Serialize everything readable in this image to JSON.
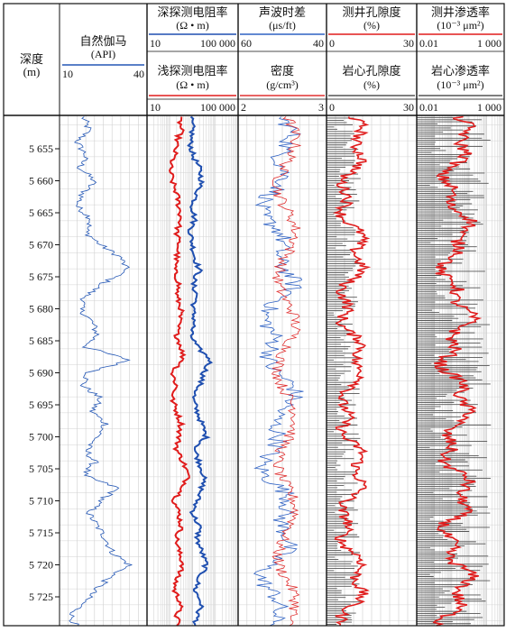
{
  "chart_data": {
    "type": "well-log",
    "depth_axis": {
      "label": "深度",
      "unit": "(m)",
      "ticks": [
        5655,
        5660,
        5665,
        5670,
        5675,
        5680,
        5685,
        5690,
        5695,
        5700,
        5705,
        5710,
        5715,
        5720,
        5725
      ],
      "tick_labels": [
        "5 655",
        "5 660",
        "5 665",
        "5 670",
        "5 675",
        "5 680",
        "5 685",
        "5 690",
        "5 695",
        "5 700",
        "5 705",
        "5 710",
        "5 715",
        "5 720",
        "5 725"
      ],
      "range": [
        5650,
        5730
      ]
    },
    "tracks": [
      {
        "title": "自然伽马",
        "unit": "(API)",
        "min_label": "10",
        "max_label": "40",
        "color": "#2457b5"
      },
      {
        "title1": "深探测电阻率",
        "unit1": "(Ω • m)",
        "min1": "10",
        "max1": "100 000",
        "color1": "#1f4fb0",
        "title2": "浅探测电阻率",
        "unit2": "(Ω • m)",
        "min2": "10",
        "max2": "100 000",
        "color2": "#e01c1c"
      },
      {
        "title1": "声波时差",
        "unit1": "(μs/ft)",
        "min1": "60",
        "max1": "40",
        "color1": "#2f62c4",
        "title2": "密度",
        "unit2": "(g/cm³)",
        "min2": "2",
        "max2": "3",
        "color2": "#e03030"
      },
      {
        "title1": "测井孔隙度",
        "unit1": "(%)",
        "min1": "0",
        "max1": "30",
        "color1": "#e01c1c",
        "title2": "岩心孔隙度",
        "unit2": "(%)",
        "min2": "0",
        "max2": "30",
        "color2": "#555555"
      },
      {
        "title1": "测井渗透率",
        "unit1": "(10⁻³ μm²)",
        "min1": "0.01",
        "max1": "1 000",
        "color1": "#e01c1c",
        "title2": "岩心渗透率",
        "unit2": "(10⁻³ μm²)",
        "min2": "0.01",
        "max2": "1 000",
        "color2": "#555555"
      }
    ],
    "series_samples": {
      "gamma": [
        [
          5650,
          18
        ],
        [
          5652,
          20
        ],
        [
          5654,
          16
        ],
        [
          5656,
          19
        ],
        [
          5658,
          17
        ],
        [
          5660,
          22
        ],
        [
          5662,
          18
        ],
        [
          5664,
          16
        ],
        [
          5666,
          21
        ],
        [
          5668,
          19
        ],
        [
          5670,
          24
        ],
        [
          5672,
          31
        ],
        [
          5674,
          33
        ],
        [
          5676,
          25
        ],
        [
          5678,
          19
        ],
        [
          5680,
          17
        ],
        [
          5682,
          21
        ],
        [
          5684,
          23
        ],
        [
          5686,
          19
        ],
        [
          5688,
          34
        ],
        [
          5690,
          20
        ],
        [
          5692,
          18
        ],
        [
          5694,
          24
        ],
        [
          5696,
          21
        ],
        [
          5698,
          26
        ],
        [
          5700,
          23
        ],
        [
          5702,
          19
        ],
        [
          5704,
          22
        ],
        [
          5706,
          18
        ],
        [
          5708,
          30
        ],
        [
          5710,
          24
        ],
        [
          5712,
          20
        ],
        [
          5714,
          23
        ],
        [
          5716,
          26
        ],
        [
          5718,
          28
        ],
        [
          5720,
          34
        ],
        [
          5722,
          27
        ],
        [
          5724,
          22
        ],
        [
          5726,
          18
        ],
        [
          5728,
          14
        ],
        [
          5730,
          16
        ]
      ],
      "deep_resistivity_log10": [
        [
          5650,
          2.9
        ],
        [
          5652,
          3.0
        ],
        [
          5654,
          2.9
        ],
        [
          5656,
          3.0
        ],
        [
          5658,
          3.3
        ],
        [
          5660,
          3.4
        ],
        [
          5662,
          3.2
        ],
        [
          5664,
          3.0
        ],
        [
          5666,
          3.1
        ],
        [
          5668,
          2.9
        ],
        [
          5670,
          3.0
        ],
        [
          5672,
          3.1
        ],
        [
          5674,
          3.3
        ],
        [
          5676,
          3.0
        ],
        [
          5678,
          3.2
        ],
        [
          5680,
          3.0
        ],
        [
          5682,
          3.1
        ],
        [
          5684,
          2.9
        ],
        [
          5686,
          3.2
        ],
        [
          5688,
          3.8
        ],
        [
          5690,
          3.5
        ],
        [
          5692,
          3.3
        ],
        [
          5694,
          3.0
        ],
        [
          5696,
          3.2
        ],
        [
          5698,
          3.4
        ],
        [
          5700,
          3.6
        ],
        [
          5702,
          3.1
        ],
        [
          5704,
          3.3
        ],
        [
          5706,
          3.5
        ],
        [
          5708,
          3.4
        ],
        [
          5710,
          3.2
        ],
        [
          5712,
          3.0
        ],
        [
          5714,
          3.3
        ],
        [
          5716,
          3.2
        ],
        [
          5718,
          3.4
        ],
        [
          5720,
          3.6
        ],
        [
          5722,
          3.3
        ],
        [
          5724,
          3.1
        ],
        [
          5726,
          3.4
        ],
        [
          5728,
          3.2
        ],
        [
          5730,
          3.1
        ]
      ],
      "shallow_resistivity_log10": [
        [
          5650,
          2.4
        ],
        [
          5652,
          2.5
        ],
        [
          5654,
          2.3
        ],
        [
          5656,
          2.2
        ],
        [
          5658,
          2.0
        ],
        [
          5660,
          2.1
        ],
        [
          5662,
          2.3
        ],
        [
          5664,
          2.4
        ],
        [
          5666,
          2.5
        ],
        [
          5668,
          2.3
        ],
        [
          5670,
          2.4
        ],
        [
          5672,
          2.3
        ],
        [
          5674,
          2.2
        ],
        [
          5676,
          2.4
        ],
        [
          5678,
          2.3
        ],
        [
          5680,
          2.5
        ],
        [
          5682,
          2.4
        ],
        [
          5684,
          2.3
        ],
        [
          5686,
          2.5
        ],
        [
          5688,
          2.6
        ],
        [
          5690,
          2.1
        ],
        [
          5692,
          2.3
        ],
        [
          5694,
          2.1
        ],
        [
          5696,
          2.3
        ],
        [
          5698,
          2.5
        ],
        [
          5700,
          2.4
        ],
        [
          5702,
          2.3
        ],
        [
          5704,
          2.6
        ],
        [
          5706,
          2.8
        ],
        [
          5708,
          2.6
        ],
        [
          5710,
          2.2
        ],
        [
          5712,
          2.4
        ],
        [
          5714,
          2.5
        ],
        [
          5716,
          2.3
        ],
        [
          5718,
          2.4
        ],
        [
          5720,
          2.6
        ],
        [
          5722,
          2.3
        ],
        [
          5724,
          2.2
        ],
        [
          5726,
          2.5
        ],
        [
          5728,
          2.3
        ],
        [
          5730,
          2.4
        ]
      ]
    }
  }
}
